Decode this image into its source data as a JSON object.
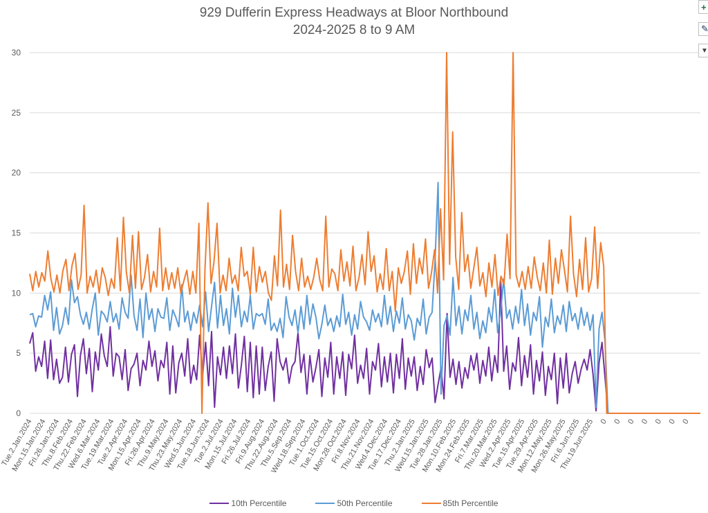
{
  "side_buttons": [
    {
      "name": "chart-elements-button",
      "icon": "plus-icon",
      "glyph": "+",
      "color": "#217346"
    },
    {
      "name": "chart-styles-button",
      "icon": "brush-icon",
      "glyph": "✎",
      "color": "#1f3864"
    },
    {
      "name": "chart-filters-button",
      "icon": "filter-icon",
      "glyph": "▼",
      "color": "#404040"
    }
  ],
  "chart_data": {
    "type": "line",
    "title": "929 Dufferin Express Headways at Bloor Northbound",
    "subtitle": "2024-2025 8 to 9 AM",
    "xlabel": "",
    "ylabel": "",
    "ylim": [
      0,
      30
    ],
    "yticks": [
      "0",
      "5",
      "10",
      "15",
      "20",
      "25",
      "30"
    ],
    "grid": true,
    "legend_position": "bottom",
    "x_tick_labels": [
      "Tue.2.Jan.2024",
      "Mon.15.Jan.2024",
      "Fri.26.Jan.2024",
      "Thu.8.Feb.2024",
      "Thu.22.Feb.2024",
      "Wed.6.Mar.2024",
      "Tue.19.Mar.2024",
      "Tue.2.Apr.2024",
      "Mon.15.Apr.2024",
      "Fri.26.Apr.2024",
      "Thu.9.May.2024",
      "Thu.23.May.2024",
      "Wed.5.Jun.2024",
      "Tue.18.Jun.2024",
      "Tue.2.Jul.2024",
      "Mon.15.Jul.2024",
      "Fri.26.Jul.2024",
      "Fri.9.Aug.2024",
      "Thu.22.Aug.2024",
      "Thu.5.Sep.2024",
      "Wed.18.Sep.2024",
      "Tue.1.Oct.2024",
      "Tue.15.Oct.2024",
      "Mon.28.Oct.2024",
      "Fri.8.Nov.2024",
      "Thu.21.Nov.2024",
      "Wed.4.Dec.2024",
      "Tue.17.Dec.2024",
      "Thu.2.Jan.2025",
      "Wed.15.Jan.2025",
      "Tue.28.Jan.2025",
      "Mon.10.Feb.2025",
      "Mon.24.Feb.2025",
      "Fri.7.Mar.2025",
      "Thu.20.Mar.2025",
      "Wed.2.Apr.2025",
      "Tue.15.Apr.2025",
      "Tue.29.Apr.2025",
      "Mon.12.May.2025",
      "Mon.26.May.2025",
      "Fri.6.Jun.2025",
      "Thu.19.Jun.2025",
      "0",
      "0",
      "0",
      "0",
      "0",
      "0",
      "0"
    ],
    "series": [
      {
        "name": "10th Percentile",
        "color": "#7030A0",
        "values": [
          5.8,
          6.7,
          3.5,
          4.7,
          3.9,
          6.0,
          2.9,
          6.1,
          2.8,
          4.5,
          2.5,
          3.0,
          5.5,
          2.6,
          4.9,
          5.7,
          1.4,
          4.8,
          6.2,
          3.3,
          5.4,
          1.8,
          5.1,
          3.6,
          6.6,
          4.8,
          3.9,
          7.2,
          3.1,
          5.0,
          4.7,
          2.8,
          5.3,
          1.9,
          3.7,
          4.1,
          5.0,
          2.3,
          4.4,
          3.6,
          6.0,
          3.9,
          5.2,
          2.7,
          4.4,
          3.8,
          5.9,
          1.6,
          5.6,
          1.7,
          4.2,
          5.0,
          3.1,
          6.2,
          2.5,
          4.0,
          2.8,
          6.5,
          3.1,
          5.9,
          2.3,
          6.8,
          0.5,
          4.7,
          3.2,
          5.5,
          2.9,
          5.6,
          3.3,
          6.6,
          2.1,
          4.0,
          6.4,
          1.8,
          5.9,
          1.3,
          5.6,
          1.6,
          5.5,
          1.9,
          3.9,
          5.1,
          1.0,
          6.2,
          4.3,
          3.6,
          4.6,
          2.5,
          3.9,
          4.3,
          6.7,
          3.4,
          4.9,
          1.6,
          4.8,
          2.6,
          3.8,
          5.3,
          1.4,
          4.6,
          3.0,
          5.9,
          1.6,
          4.7,
          2.9,
          5.1,
          1.5,
          4.9,
          3.7,
          6.5,
          2.5,
          4.0,
          2.9,
          5.4,
          1.6,
          4.3,
          3.6,
          5.8,
          2.2,
          4.7,
          2.6,
          5.0,
          1.7,
          4.9,
          2.9,
          6.2,
          2.0,
          4.6,
          3.1,
          4.7,
          1.9,
          3.9,
          2.4,
          5.3,
          3.8,
          4.6,
          0.9,
          2.4,
          3.8,
          1.2,
          8.3,
          3.0,
          4.5,
          2.4,
          4.3,
          2.1,
          3.8,
          2.9,
          4.8,
          3.6,
          5.0,
          2.5,
          4.4,
          3.1,
          5.5,
          2.7,
          4.8,
          3.4,
          11.0,
          3.5,
          5.6,
          2.0,
          4.2,
          3.5,
          6.3,
          2.3,
          4.8,
          3.0,
          5.7,
          1.6,
          4.4,
          2.7,
          5.1,
          1.5,
          3.9,
          2.8,
          5.0,
          0.8,
          4.6,
          2.1,
          5.0,
          1.7,
          3.3,
          4.3,
          2.5,
          3.7,
          4.5,
          3.6,
          5.3,
          3.2,
          0.2,
          4.2,
          5.9,
          3.0,
          0,
          0,
          0,
          0,
          0,
          0,
          0,
          0,
          0,
          0,
          0,
          0,
          0,
          0,
          0,
          0,
          0,
          0,
          0,
          0,
          0,
          0,
          0,
          0,
          0,
          0,
          0,
          0,
          0,
          0,
          0,
          0
        ]
      },
      {
        "name": "50th Percentile",
        "color": "#5B9BD5",
        "values": [
          8.2,
          8.3,
          7.2,
          8.1,
          8.0,
          9.8,
          8.6,
          10.1,
          6.9,
          8.8,
          6.6,
          7.3,
          8.8,
          7.4,
          11.1,
          9.2,
          9.7,
          8.2,
          7.4,
          8.4,
          7.0,
          8.7,
          10.0,
          6.5,
          8.5,
          8.2,
          7.6,
          9.3,
          7.6,
          8.3,
          7.0,
          9.6,
          8.4,
          7.9,
          11.5,
          8.1,
          6.9,
          9.5,
          6.3,
          10.0,
          7.8,
          8.7,
          6.8,
          8.7,
          8.0,
          7.9,
          9.6,
          6.9,
          8.6,
          8.0,
          7.2,
          10.7,
          7.6,
          8.5,
          6.9,
          8.4,
          7.5,
          9.0,
          7.2,
          10.1,
          6.8,
          8.9,
          10.9,
          7.1,
          9.8,
          7.3,
          8.7,
          6.6,
          10.4,
          8.0,
          9.8,
          7.2,
          8.5,
          7.6,
          9.8,
          7.0,
          8.3,
          8.1,
          8.3,
          7.4,
          9.5,
          6.9,
          7.5,
          6.8,
          7.9,
          6.3,
          9.7,
          8.0,
          7.3,
          8.6,
          6.7,
          8.9,
          7.0,
          9.8,
          7.4,
          9.1,
          8.0,
          6.2,
          7.4,
          9.0,
          7.3,
          7.9,
          6.8,
          8.1,
          7.2,
          9.9,
          7.4,
          8.4,
          6.5,
          8.2,
          7.0,
          9.3,
          8.0,
          7.6,
          6.9,
          8.6,
          7.6,
          8.3,
          7.2,
          9.8,
          7.4,
          8.9,
          6.8,
          8.5,
          7.5,
          9.6,
          7.0,
          8.2,
          7.7,
          6.1,
          7.9,
          7.3,
          9.5,
          6.6,
          8.0,
          8.4,
          12.8,
          19.2,
          1.6,
          7.3,
          8.1,
          6.5,
          11.3,
          7.3,
          8.9,
          6.6,
          8.6,
          7.7,
          9.8,
          7.0,
          8.4,
          6.2,
          7.7,
          6.7,
          8.8,
          7.6,
          10.3,
          6.7,
          8.5,
          11.2,
          7.9,
          8.6,
          7.0,
          8.9,
          7.5,
          10.3,
          7.3,
          9.1,
          6.5,
          8.4,
          7.7,
          9.7,
          5.5,
          8.0,
          7.2,
          9.5,
          6.7,
          8.1,
          7.4,
          9.0,
          6.8,
          9.3,
          7.7,
          8.3,
          7.0,
          8.8,
          7.3,
          8.4,
          6.9,
          8.2,
          0.5,
          7.0,
          8.4,
          6.0,
          0,
          0,
          0,
          0,
          0,
          0,
          0,
          0,
          0,
          0,
          0,
          0,
          0,
          0,
          0,
          0,
          0,
          0,
          0,
          0,
          0,
          0,
          0,
          0,
          0,
          0,
          0,
          0,
          0,
          0,
          0,
          0
        ]
      },
      {
        "name": "85th Percentile",
        "color": "#ED7D31",
        "values": [
          11.6,
          10.2,
          11.8,
          10.5,
          11.7,
          11.0,
          13.5,
          11.2,
          10.1,
          11.5,
          10.0,
          11.9,
          12.8,
          10.2,
          12.3,
          13.3,
          10.3,
          11.5,
          17.3,
          10.0,
          11.4,
          10.5,
          11.9,
          10.0,
          12.1,
          11.3,
          9.8,
          11.2,
          10.4,
          14.6,
          10.2,
          16.3,
          11.7,
          10.0,
          14.8,
          10.4,
          15.1,
          10.3,
          11.3,
          13.2,
          10.1,
          11.8,
          10.5,
          15.4,
          10.2,
          12.1,
          10.3,
          11.7,
          10.4,
          12.1,
          10.0,
          11.0,
          11.9,
          9.9,
          11.8,
          10.0,
          15.8,
          0.0,
          11.9,
          17.5,
          10.8,
          12.6,
          15.8,
          10.0,
          11.5,
          10.2,
          12.9,
          10.8,
          11.5,
          10.2,
          13.8,
          11.4,
          11.8,
          9.9,
          13.8,
          10.1,
          12.2,
          10.9,
          11.8,
          10.0,
          9.4,
          13.1,
          10.6,
          16.9,
          10.5,
          12.4,
          10.3,
          14.8,
          11.8,
          10.2,
          12.9,
          10.5,
          11.4,
          10.3,
          11.3,
          12.9,
          11.1,
          10.2,
          16.4,
          10.5,
          12.0,
          11.6,
          10.2,
          13.6,
          11.0,
          12.6,
          10.6,
          13.9,
          10.2,
          11.3,
          13.2,
          10.7,
          15.1,
          11.8,
          13.1,
          10.1,
          11.6,
          10.3,
          13.7,
          10.2,
          11.8,
          8.5,
          12.1,
          10.8,
          11.8,
          13.5,
          9.9,
          14.1,
          10.8,
          12.9,
          11.6,
          14.5,
          10.4,
          11.7,
          13.6,
          10.0,
          17.0,
          11.1,
          30.0,
          12.4,
          23.4,
          13.0,
          10.3,
          16.7,
          11.8,
          13.2,
          10.4,
          12.1,
          13.8,
          10.6,
          11.7,
          9.7,
          12.5,
          10.5,
          13.2,
          9.8,
          11.4,
          10.7,
          14.9,
          11.2,
          30.0,
          11.5,
          10.5,
          11.8,
          10.3,
          12.2,
          10.4,
          13.0,
          11.3,
          10.2,
          12.5,
          10.0,
          14.4,
          9.9,
          12.9,
          10.8,
          13.6,
          11.9,
          10.1,
          16.4,
          11.6,
          9.7,
          12.8,
          10.3,
          14.6,
          10.1,
          11.2,
          15.5,
          10.4,
          14.2,
          12.2,
          0,
          0,
          0,
          0,
          0,
          0,
          0,
          0,
          0,
          0,
          0,
          0,
          0,
          0,
          0,
          0,
          0,
          0,
          0,
          0,
          0,
          0,
          0,
          0,
          0,
          0,
          0,
          0,
          0,
          0,
          0,
          0
        ]
      }
    ]
  }
}
